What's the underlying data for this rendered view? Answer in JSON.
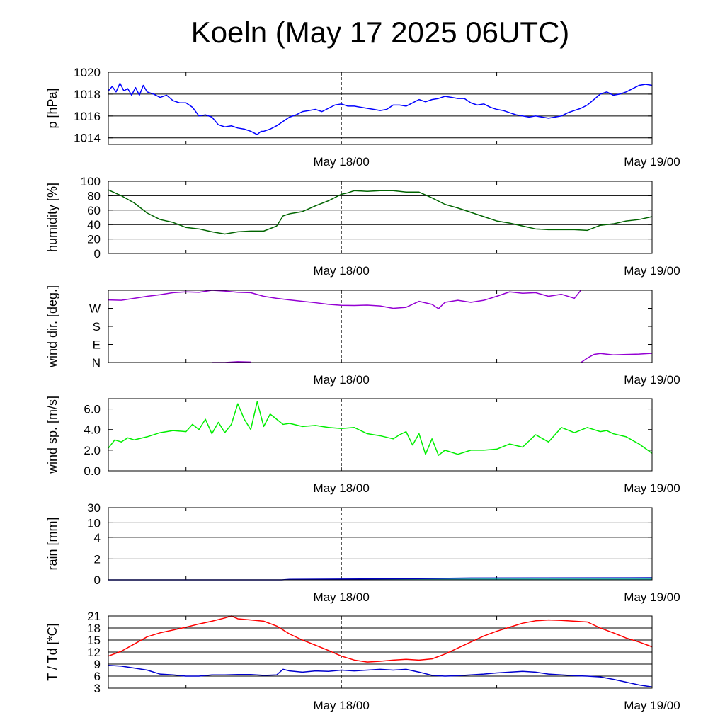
{
  "title": "Koeln (May 17 2025 06UTC)",
  "x_tick_labels": [
    "May 18/00",
    "May 19/00"
  ],
  "colors": {
    "pressure": "#0000ff",
    "humidity": "#006400",
    "wind_dir": "#9400d3",
    "wind_speed": "#00ee00",
    "rain": "#0000c0",
    "rain_fill": "#00a0a0",
    "temperature": "#ff0000",
    "dewpoint": "#0000cd",
    "grid": "#000000"
  },
  "chart_data": [
    {
      "id": "pressure",
      "type": "line",
      "ylabel": "p [hPa]",
      "x_unit": "hours since May 17 06UTC",
      "xlim": [
        0,
        42
      ],
      "ylim": [
        1013.4,
        1020
      ],
      "yticks": [
        1014,
        1016,
        1018,
        1020
      ],
      "ytick_labels": [
        "1014",
        "1016",
        "1018",
        "1020"
      ],
      "grid": true,
      "series": [
        {
          "key": "pressure",
          "x": [
            0,
            0.3,
            0.6,
            0.9,
            1.2,
            1.5,
            1.8,
            2.1,
            2.4,
            2.7,
            3,
            3.5,
            4,
            4.5,
            5,
            5.5,
            6,
            6.5,
            7,
            7.5,
            8,
            8.5,
            9,
            9.5,
            10,
            10.5,
            11,
            11.5,
            11.8,
            12,
            12.5,
            13,
            13.5,
            14,
            14.5,
            15,
            15.5,
            16,
            16.5,
            17,
            17.5,
            18,
            18.5,
            19,
            19.5,
            20,
            20.5,
            21,
            21.5,
            22,
            22.5,
            23,
            23.5,
            24,
            24.5,
            25,
            25.5,
            26,
            26.5,
            27,
            27.5,
            28,
            28.5,
            29,
            29.5,
            30,
            30.5,
            31,
            31.5,
            32,
            32.5,
            33,
            33.5,
            34,
            34.5,
            35,
            35.5,
            36,
            36.5,
            37,
            37.5,
            38,
            38.5,
            39,
            39.5,
            40,
            40.5,
            41,
            41.5,
            42
          ],
          "y": [
            1018.3,
            1018.7,
            1018.2,
            1019.0,
            1018.3,
            1018.5,
            1017.9,
            1018.6,
            1017.9,
            1018.8,
            1018.2,
            1018.0,
            1017.7,
            1017.9,
            1017.4,
            1017.2,
            1017.2,
            1016.8,
            1016.0,
            1016.1,
            1015.9,
            1015.2,
            1015.0,
            1015.1,
            1014.9,
            1014.8,
            1014.6,
            1014.3,
            1014.6,
            1014.6,
            1014.8,
            1015.1,
            1015.5,
            1015.9,
            1016.1,
            1016.4,
            1016.5,
            1016.6,
            1016.4,
            1016.7,
            1017.0,
            1017.1,
            1016.9,
            1016.9,
            1016.8,
            1016.7,
            1016.6,
            1016.5,
            1016.6,
            1017.0,
            1017.0,
            1016.9,
            1017.2,
            1017.5,
            1017.3,
            1017.5,
            1017.6,
            1017.8,
            1017.7,
            1017.6,
            1017.6,
            1017.2,
            1017.0,
            1017.1,
            1016.8,
            1016.6,
            1016.5,
            1016.3,
            1016.1,
            1016.0,
            1015.9,
            1016.0,
            1015.9,
            1015.8,
            1015.9,
            1016.0,
            1016.3,
            1016.5,
            1016.7,
            1017.0,
            1017.5,
            1018.0,
            1018.2,
            1017.9,
            1018.0,
            1018.2,
            1018.5,
            1018.8,
            1018.9,
            1018.8
          ]
        }
      ]
    },
    {
      "id": "humidity",
      "type": "line",
      "ylabel": "humidity [%]",
      "xlim": [
        0,
        42
      ],
      "ylim": [
        0,
        100
      ],
      "yticks": [
        0,
        20,
        40,
        60,
        80,
        100
      ],
      "ytick_labels": [
        "0",
        "20",
        "40",
        "60",
        "80",
        "100"
      ],
      "grid": true,
      "series": [
        {
          "key": "humidity",
          "x": [
            0,
            1,
            2,
            3,
            4,
            5,
            6,
            7,
            8,
            9,
            10,
            11,
            12,
            13,
            13.5,
            14,
            15,
            16,
            17,
            18,
            18.5,
            19,
            20,
            21,
            22,
            23,
            24,
            25,
            26,
            27,
            28,
            29,
            30,
            31,
            32,
            33,
            34,
            35,
            36,
            37,
            38,
            39,
            40,
            41,
            42
          ],
          "y": [
            88,
            80,
            70,
            56,
            47,
            43,
            36,
            34,
            30,
            27,
            30,
            31,
            31,
            38,
            52,
            55,
            58,
            66,
            73,
            82,
            84,
            87,
            86,
            87,
            87,
            85,
            85,
            77,
            68,
            63,
            57,
            51,
            45,
            42,
            38,
            34,
            33,
            33,
            33,
            32,
            39,
            41,
            45,
            47,
            51
          ]
        }
      ]
    },
    {
      "id": "wind_direction",
      "type": "line",
      "ylabel": "wind dir. [deg.]",
      "xlim": [
        0,
        42
      ],
      "ylim": [
        0,
        360
      ],
      "yticks": [
        0,
        90,
        180,
        270
      ],
      "ytick_labels": [
        "N",
        "E",
        "S",
        "W"
      ],
      "grid": false,
      "series": [
        {
          "key": "wind_dir_main",
          "x": [
            0,
            1,
            2,
            3,
            4,
            5,
            6,
            7,
            8,
            9,
            10,
            11,
            12,
            13,
            14,
            15,
            16,
            17,
            18,
            19,
            20,
            21,
            22,
            23,
            24,
            25,
            25.5,
            26,
            27,
            28,
            29,
            30,
            31,
            32,
            33,
            34,
            35,
            36,
            36.5
          ],
          "y": [
            312,
            310,
            320,
            330,
            338,
            348,
            352,
            350,
            360,
            356,
            350,
            348,
            330,
            320,
            312,
            305,
            298,
            290,
            285,
            284,
            286,
            282,
            270,
            275,
            305,
            290,
            268,
            300,
            310,
            300,
            310,
            330,
            352,
            345,
            348,
            330,
            340,
            320,
            360
          ]
        },
        {
          "key": "wind_dir_low",
          "x": [
            8,
            9,
            10,
            11
          ],
          "y": [
            0,
            0,
            4,
            2
          ]
        },
        {
          "key": "wind_dir_end",
          "x": [
            36.5,
            37,
            37.5,
            38,
            39,
            40,
            41,
            42
          ],
          "y": [
            0,
            22,
            40,
            45,
            38,
            40,
            42,
            46
          ]
        }
      ]
    },
    {
      "id": "wind_speed",
      "type": "line",
      "ylabel": "wind sp. [m/s]",
      "xlim": [
        0,
        42
      ],
      "ylim": [
        0,
        7
      ],
      "yticks": [
        0,
        2,
        4,
        6
      ],
      "ytick_labels": [
        "0.0",
        "2.0",
        "4.0",
        "6.0"
      ],
      "grid": false,
      "series": [
        {
          "key": "wind_speed",
          "x": [
            0,
            0.5,
            1,
            1.5,
            2,
            3,
            4,
            5,
            6,
            6.5,
            7,
            7.5,
            8,
            8.5,
            9,
            9.5,
            10,
            10.5,
            11,
            11.5,
            12,
            12.5,
            13,
            13.5,
            14,
            15,
            16,
            17,
            18,
            19,
            20,
            21,
            22,
            22.5,
            23,
            23.5,
            24,
            24.5,
            25,
            25.5,
            26,
            27,
            28,
            29,
            30,
            31,
            32,
            33,
            34,
            35,
            36,
            37,
            38,
            38.5,
            39,
            40,
            41,
            42
          ],
          "y": [
            2.2,
            3.0,
            2.8,
            3.2,
            3.0,
            3.3,
            3.7,
            3.9,
            3.8,
            4.5,
            4.0,
            5.0,
            3.6,
            4.7,
            3.7,
            4.5,
            6.5,
            5.0,
            4.0,
            6.7,
            4.3,
            5.5,
            5.0,
            4.5,
            4.6,
            4.3,
            4.4,
            4.2,
            4.1,
            4.2,
            3.6,
            3.4,
            3.1,
            3.5,
            3.8,
            2.5,
            3.6,
            1.6,
            3.1,
            1.5,
            2.0,
            1.6,
            2.0,
            2.0,
            2.1,
            2.6,
            2.3,
            3.5,
            2.8,
            4.2,
            3.7,
            4.2,
            3.8,
            3.9,
            3.6,
            3.3,
            2.6,
            1.7
          ]
        }
      ]
    },
    {
      "id": "rain",
      "type": "area",
      "ylabel": "rain [mm]",
      "xlim": [
        0,
        42
      ],
      "ylim": [
        0,
        30
      ],
      "yticks": [
        0,
        2,
        4,
        10,
        30
      ],
      "ytick_labels": [
        "0",
        "2",
        "4",
        "10",
        "30"
      ],
      "grid": true,
      "series": [
        {
          "key": "rain_accumulated",
          "x": [
            0,
            13.4,
            14,
            24,
            28,
            42
          ],
          "y": [
            0,
            0,
            0.05,
            0.12,
            0.18,
            0.2
          ]
        }
      ]
    },
    {
      "id": "temperature",
      "type": "line",
      "ylabel": "T / Td [*C]",
      "xlim": [
        0,
        42
      ],
      "ylim": [
        3,
        21
      ],
      "yticks": [
        3,
        6,
        9,
        12,
        15,
        18,
        21
      ],
      "ytick_labels": [
        "3",
        "6",
        "9",
        "12",
        "15",
        "18",
        "21"
      ],
      "grid": true,
      "series": [
        {
          "key": "temperature",
          "x": [
            0,
            1,
            2,
            3,
            4,
            5,
            6,
            7,
            8,
            9,
            9.5,
            10,
            11,
            12,
            13,
            14,
            15,
            16,
            17,
            18,
            19,
            20,
            21,
            22,
            23,
            24,
            25,
            26,
            27,
            28,
            29,
            30,
            31,
            32,
            33,
            34,
            35,
            36,
            37,
            38,
            39,
            40,
            41,
            42
          ],
          "y": [
            11.0,
            12.2,
            14.0,
            15.8,
            16.8,
            17.5,
            18.2,
            19.0,
            19.7,
            20.5,
            21.0,
            20.3,
            20.0,
            19.7,
            18.5,
            16.5,
            15.0,
            13.7,
            12.4,
            11.0,
            10.0,
            9.5,
            9.7,
            10.0,
            10.2,
            10.0,
            10.3,
            11.5,
            13.0,
            14.5,
            16.0,
            17.2,
            18.2,
            19.2,
            19.8,
            20.0,
            19.9,
            19.7,
            19.5,
            18.0,
            16.8,
            15.5,
            14.5,
            13.3
          ]
        },
        {
          "key": "dewpoint",
          "x": [
            0,
            1,
            2,
            3,
            4,
            5,
            6,
            7,
            8,
            9,
            10,
            11,
            12,
            13,
            13.5,
            14,
            15,
            16,
            17,
            18,
            19,
            20,
            21,
            22,
            23,
            24,
            25,
            26,
            27,
            28,
            29,
            30,
            31,
            32,
            33,
            34,
            35,
            36,
            37,
            38,
            39,
            40,
            41,
            42
          ],
          "y": [
            8.7,
            8.5,
            8.0,
            7.5,
            6.5,
            6.3,
            6.0,
            6.0,
            6.3,
            6.3,
            6.4,
            6.4,
            6.2,
            6.3,
            7.7,
            7.3,
            7.0,
            7.3,
            7.2,
            7.5,
            7.3,
            7.5,
            7.7,
            7.5,
            7.7,
            7.0,
            6.2,
            6.0,
            6.1,
            6.3,
            6.5,
            6.8,
            7.0,
            7.2,
            7.0,
            6.5,
            6.3,
            6.1,
            6.0,
            5.8,
            5.2,
            4.5,
            3.8,
            3.3
          ]
        }
      ]
    }
  ]
}
